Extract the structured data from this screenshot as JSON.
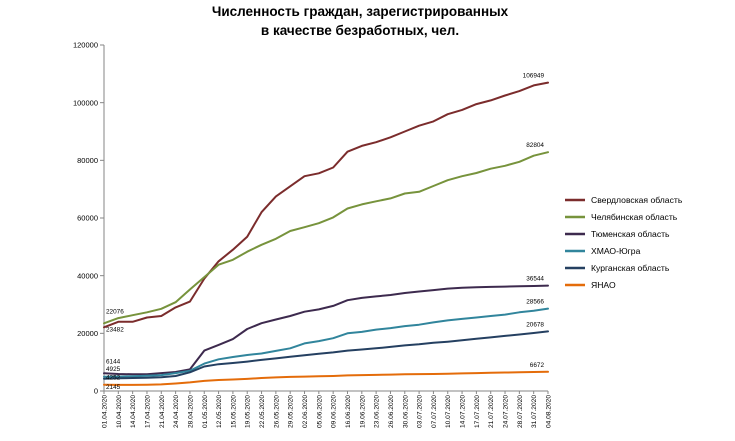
{
  "chart_data": {
    "type": "line",
    "title_lines": [
      "Численность граждан, зарегистрированных",
      "в качестве безработных, чел."
    ],
    "xlabel": "",
    "ylabel": "",
    "ylim": [
      0,
      120000
    ],
    "yticks": [
      0,
      20000,
      40000,
      60000,
      80000,
      100000,
      120000
    ],
    "grid": false,
    "legend_position": "right",
    "x_tick_labels": [
      "01.04.2020",
      "10.04.2020",
      "14.04.2020",
      "17.04.2020",
      "21.04.2020",
      "24.04.2020",
      "28.04.2020",
      "01.05.2020",
      "12.05.2020",
      "15.05.2020",
      "19.05.2020",
      "22.05.2020",
      "26.05.2020",
      "29.05.2020",
      "02.06.2020",
      "05.06.2020",
      "09.06.2020",
      "16.06.2020",
      "19.06.2020",
      "23.06.2020",
      "26.06.2020",
      "30.06.2020",
      "03.07.2020",
      "07.07.2020",
      "10.07.2020",
      "14.07.2020",
      "17.07.2020",
      "21.07.2020",
      "24.07.2020",
      "28.07.2020",
      "31.07.2020",
      "04.08.2020"
    ],
    "series": [
      {
        "name": "Свердловская область",
        "color": "#7b2c2c",
        "start_label": "22076",
        "end_label": "106949",
        "values": [
          22076,
          24000,
          24000,
          25500,
          26000,
          29000,
          31000,
          39000,
          45000,
          49000,
          53500,
          62000,
          67500,
          71000,
          74500,
          75500,
          77500,
          83000,
          85000,
          86300,
          88000,
          90000,
          92000,
          93500,
          96000,
          97500,
          99500,
          100800,
          102500,
          104000,
          106000,
          106949
        ]
      },
      {
        "name": "Челябинская область",
        "color": "#77933c",
        "start_label": "23482",
        "end_label": "82804",
        "values": [
          23482,
          25300,
          26300,
          27300,
          28500,
          30800,
          35200,
          39500,
          43800,
          45500,
          48300,
          50700,
          52800,
          55500,
          56800,
          58200,
          60200,
          63300,
          64700,
          65800,
          66800,
          68500,
          69100,
          71100,
          73100,
          74500,
          75600,
          77100,
          78100,
          79500,
          81600,
          82804
        ]
      },
      {
        "name": "Тюменская область",
        "color": "#3d2a4e",
        "start_label": "6144",
        "end_label": "36544",
        "values": [
          6144,
          5900,
          5800,
          5800,
          6200,
          6600,
          7500,
          14000,
          16000,
          18000,
          21500,
          23500,
          24800,
          26000,
          27500,
          28300,
          29500,
          31500,
          32300,
          32800,
          33300,
          34000,
          34500,
          35000,
          35500,
          35800,
          36000,
          36100,
          36200,
          36300,
          36400,
          36544
        ]
      },
      {
        "name": "ХМАО-Югра",
        "color": "#31859c",
        "start_label": "4925",
        "end_label": "28566",
        "values": [
          4925,
          5000,
          5100,
          5300,
          5500,
          6200,
          7000,
          9500,
          11000,
          11800,
          12500,
          13000,
          13900,
          14800,
          16500,
          17300,
          18300,
          20000,
          20500,
          21300,
          21800,
          22500,
          23000,
          23800,
          24500,
          25000,
          25500,
          26000,
          26500,
          27300,
          27800,
          28566
        ]
      },
      {
        "name": "Курганская область",
        "color": "#254061",
        "start_label": "4252",
        "end_label": "20678",
        "values": [
          4252,
          4400,
          4500,
          4600,
          4800,
          5200,
          6500,
          8500,
          9300,
          9700,
          10200,
          10800,
          11300,
          11900,
          12400,
          12900,
          13400,
          14000,
          14400,
          14800,
          15300,
          15800,
          16200,
          16700,
          17100,
          17600,
          18100,
          18600,
          19100,
          19600,
          20100,
          20678
        ]
      },
      {
        "name": "ЯНАО",
        "color": "#e46c0a",
        "start_label": "2145",
        "end_label": "6672",
        "values": [
          2145,
          2100,
          2100,
          2200,
          2300,
          2600,
          3000,
          3500,
          3800,
          4000,
          4200,
          4500,
          4700,
          4900,
          5000,
          5100,
          5200,
          5400,
          5500,
          5600,
          5700,
          5800,
          5850,
          5900,
          6000,
          6100,
          6200,
          6300,
          6400,
          6500,
          6600,
          6672
        ]
      }
    ]
  }
}
